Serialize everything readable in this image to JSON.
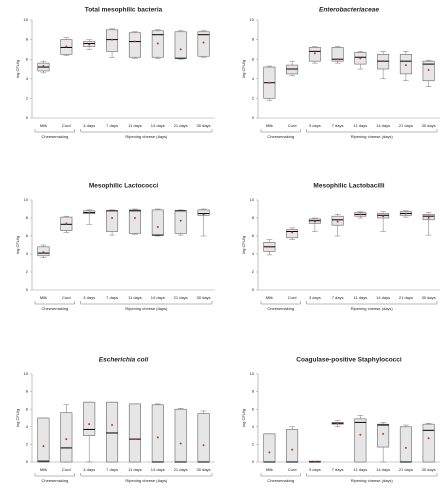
{
  "chart_data": [
    {
      "type": "box",
      "title": "Total mesophilic bacteria",
      "ylabel": "log CFU/g",
      "categories": [
        "Milk",
        "Curd",
        "3 days",
        "7 days",
        "11 days",
        "14 days",
        "21 days",
        "30 days"
      ],
      "groups": [
        "Cheesemaking",
        "Ripening cheese (days)"
      ],
      "ylim": [
        0,
        10
      ],
      "yticks": [
        0,
        2,
        4,
        6,
        8,
        10
      ],
      "box_color": "#e6e6e6",
      "mean_color": "#c0392b",
      "min": [
        4.6,
        6.4,
        7.0,
        6.2,
        6.1,
        6.1,
        6.0,
        6.2
      ],
      "q1": [
        4.8,
        6.5,
        7.3,
        6.8,
        6.2,
        6.2,
        6.1,
        6.3
      ],
      "median": [
        5.2,
        7.2,
        7.6,
        8.0,
        7.8,
        8.5,
        6.1,
        8.5
      ],
      "q3": [
        5.6,
        8.0,
        7.8,
        9.0,
        8.7,
        8.9,
        8.8,
        8.8
      ],
      "max": [
        5.8,
        8.2,
        8.0,
        9.1,
        8.8,
        9.0,
        8.9,
        8.9
      ],
      "mean": [
        5.3,
        7.3,
        7.5,
        8.0,
        7.8,
        7.6,
        7.0,
        7.7
      ]
    },
    {
      "type": "box",
      "title": "Enterobacteriaceae",
      "title_italic": true,
      "ylabel": "log CFU/g",
      "categories": [
        "Milk",
        "Curd",
        "3 days",
        "7 days",
        "11 days",
        "14 days",
        "21 days",
        "30 days"
      ],
      "groups": [
        "Cheesemaking",
        "Ripening cheese (days)"
      ],
      "ylim": [
        0,
        10
      ],
      "yticks": [
        0,
        2,
        4,
        6,
        8,
        10
      ],
      "box_color": "#e6e6e6",
      "mean_color": "#c0392b",
      "min": [
        1.8,
        4.3,
        5.6,
        5.6,
        5.0,
        4.0,
        3.8,
        3.2
      ],
      "q1": [
        2.0,
        4.5,
        5.8,
        5.8,
        5.5,
        5.0,
        4.5,
        3.8
      ],
      "median": [
        3.6,
        5.0,
        6.8,
        6.0,
        6.2,
        5.8,
        5.8,
        5.5
      ],
      "q3": [
        5.2,
        5.4,
        7.2,
        7.2,
        6.7,
        6.5,
        6.5,
        5.8
      ],
      "max": [
        5.3,
        5.8,
        7.3,
        7.3,
        6.8,
        6.8,
        6.8,
        5.9
      ],
      "mean": [
        3.6,
        5.0,
        6.6,
        6.0,
        6.1,
        5.8,
        5.4,
        4.9
      ]
    },
    {
      "type": "box",
      "title": "Mesophilic Lactococci",
      "ylabel": "log CFU/g",
      "categories": [
        "Milk",
        "Curd",
        "3 days",
        "7 days",
        "11 days",
        "14 days",
        "21 days",
        "30 days"
      ],
      "groups": [
        "Cheesemaking",
        "Ripening cheese (days)"
      ],
      "ylim": [
        0,
        10
      ],
      "yticks": [
        0,
        2,
        4,
        6,
        8,
        10
      ],
      "box_color": "#e6e6e6",
      "mean_color": "#c0392b",
      "min": [
        3.6,
        6.4,
        7.3,
        6.1,
        6.2,
        6.0,
        6.1,
        6.0
      ],
      "q1": [
        3.8,
        6.6,
        8.5,
        6.5,
        6.3,
        6.1,
        6.3,
        8.3
      ],
      "median": [
        4.1,
        7.3,
        8.6,
        8.8,
        8.8,
        6.1,
        8.8,
        8.5
      ],
      "q3": [
        4.8,
        8.1,
        8.8,
        8.8,
        8.9,
        8.9,
        8.8,
        8.9
      ],
      "max": [
        5.0,
        8.2,
        8.9,
        8.9,
        9.0,
        9.0,
        8.9,
        9.0
      ],
      "mean": [
        4.2,
        7.4,
        8.6,
        8.0,
        8.0,
        7.0,
        7.7,
        8.4
      ]
    },
    {
      "type": "box",
      "title": "Mesophilic  Lactobacilli",
      "ylabel": "log CFU/g",
      "categories": [
        "Milk",
        "Curd",
        "3 days",
        "7 days",
        "11 days",
        "14 days",
        "21 days",
        "30 days"
      ],
      "groups": [
        "Cheesemaking",
        "Ripening cheese (days)"
      ],
      "ylim": [
        0,
        10
      ],
      "yticks": [
        0,
        2,
        4,
        6,
        8,
        10
      ],
      "box_color": "#e6e6e6",
      "mean_color": "#c0392b",
      "min": [
        3.9,
        5.6,
        6.5,
        6.0,
        8.0,
        6.5,
        8.1,
        6.1
      ],
      "q1": [
        4.3,
        5.8,
        7.4,
        7.2,
        8.2,
        8.0,
        8.3,
        7.8
      ],
      "median": [
        4.8,
        6.5,
        7.7,
        7.8,
        8.4,
        8.3,
        8.5,
        8.2
      ],
      "q3": [
        5.3,
        6.7,
        7.9,
        8.2,
        8.6,
        8.5,
        8.7,
        8.4
      ],
      "max": [
        5.6,
        6.9,
        8.0,
        8.4,
        8.7,
        8.7,
        8.8,
        8.6
      ],
      "mean": [
        4.8,
        6.4,
        7.6,
        7.6,
        8.4,
        8.2,
        8.5,
        8.0
      ]
    },
    {
      "type": "box",
      "title": "Escherichia coli",
      "title_italic": true,
      "ylabel": "log CFU/g",
      "categories": [
        "Milk",
        "Curd",
        "3 days",
        "7 days",
        "11 days",
        "14 days",
        "21 days",
        "30 days"
      ],
      "groups": [
        "Cheesemaking",
        "Ripening cheese (days)"
      ],
      "ylim": [
        0,
        10
      ],
      "yticks": [
        0,
        2,
        4,
        6,
        8,
        10
      ],
      "box_color": "#e6e6e6",
      "mean_color": "#c0392b",
      "min": [
        0,
        0,
        0,
        0,
        0,
        0,
        0,
        0
      ],
      "q1": [
        0,
        0,
        3.0,
        0,
        0,
        0,
        0,
        0
      ],
      "median": [
        0.1,
        1.6,
        3.7,
        3.3,
        2.6,
        0,
        0,
        0
      ],
      "q3": [
        5.0,
        5.6,
        6.8,
        6.8,
        6.6,
        6.5,
        6.0,
        5.5
      ],
      "max": [
        5.0,
        6.5,
        6.8,
        6.8,
        6.6,
        6.6,
        6.1,
        5.8
      ],
      "mean": [
        1.8,
        2.6,
        4.3,
        4.2,
        2.6,
        2.8,
        2.1,
        1.9
      ]
    },
    {
      "type": "box",
      "title": "Coagulase-positive Staphylococci",
      "ylabel": "log CFU/g",
      "categories": [
        "Milk",
        "Curd",
        "3 days",
        "7 days",
        "11 days",
        "14 days",
        "21 days",
        "30 days"
      ],
      "groups": [
        "Cheesemaking",
        "Ripening cheese (days)"
      ],
      "ylim": [
        0,
        10
      ],
      "yticks": [
        0,
        2,
        4,
        6,
        8,
        10
      ],
      "box_color": "#e6e6e6",
      "mean_color": "#c0392b",
      "min": [
        0,
        0,
        0,
        4.0,
        0,
        0,
        0,
        0
      ],
      "q1": [
        0,
        0,
        0,
        4.3,
        0,
        1.7,
        0,
        0
      ],
      "median": [
        0,
        0,
        0,
        4.4,
        4.5,
        4.2,
        0,
        3.6
      ],
      "q3": [
        3.2,
        3.7,
        0.1,
        4.5,
        4.9,
        4.3,
        4.0,
        4.3
      ],
      "max": [
        3.2,
        4.0,
        0.1,
        4.7,
        5.3,
        4.5,
        4.2,
        4.4
      ],
      "mean": [
        1.1,
        1.4,
        0,
        4.4,
        3.1,
        3.2,
        1.6,
        2.7
      ]
    }
  ]
}
